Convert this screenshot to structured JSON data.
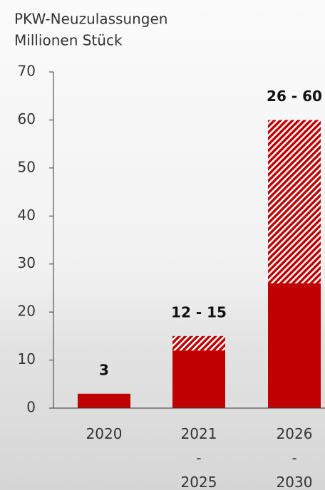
{
  "chart_data": {
    "type": "bar",
    "stacked": true,
    "title": "PKW-Neuzulassungen",
    "subtitle": "Millionen Stück",
    "categories": [
      "2020",
      "2021 - 2025",
      "2026 - 2030"
    ],
    "series": [
      {
        "color": "#c00000",
        "pattern": "solid",
        "values": [
          3,
          12,
          26
        ]
      },
      {
        "color": "#c00000",
        "pattern": "hatched",
        "values": [
          0,
          3,
          34
        ]
      }
    ],
    "value_labels": [
      "3",
      "12 - 15",
      "26 - 60"
    ],
    "ylim": [
      0,
      70
    ],
    "yticks": [
      0,
      10,
      20,
      30,
      40,
      50,
      60,
      70
    ]
  }
}
